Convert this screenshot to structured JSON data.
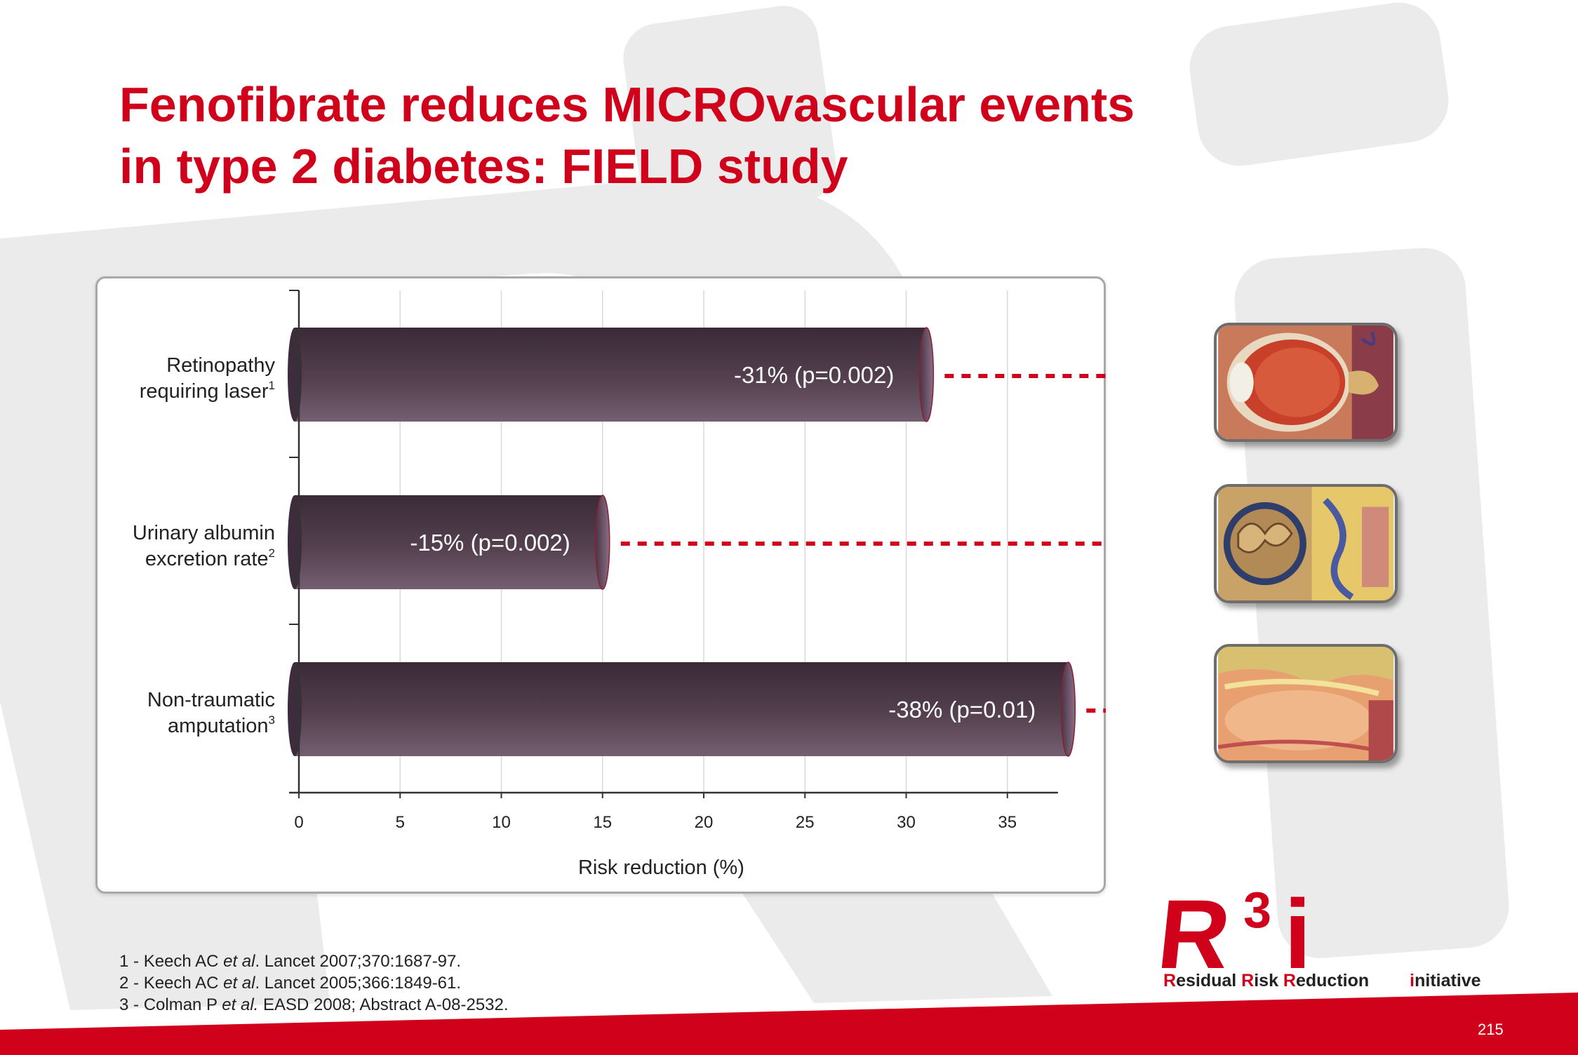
{
  "slide": {
    "title_line1": "Fenofibrate reduces MICROvascular events",
    "title_line2": "in type 2 diabetes: FIELD study",
    "page_number": "215"
  },
  "chart_data": {
    "type": "bar",
    "orientation": "horizontal",
    "categories": [
      {
        "label_line1": "Retinopathy",
        "label_line2": "requiring laser",
        "ref": "1"
      },
      {
        "label_line1": "Urinary albumin",
        "label_line2": "excretion rate",
        "ref": "2"
      },
      {
        "label_line1": "Non-traumatic",
        "label_line2": "amputation",
        "ref": "3"
      }
    ],
    "values": [
      31,
      15,
      38
    ],
    "data_labels": [
      "-31% (p=0.002)",
      "-15% (p=0.002)",
      "-38% (p=0.01)"
    ],
    "xlabel": "Risk reduction (%)",
    "xticks": [
      "0",
      "5",
      "10",
      "15",
      "20",
      "25",
      "30",
      "35"
    ],
    "xlim": [
      0,
      37.5
    ],
    "grid": true,
    "bar_color": "#54404f",
    "arrow_color": "#d0021b"
  },
  "thumbnails": [
    {
      "icon": "eye-anatomy-illustration"
    },
    {
      "icon": "kidney-anatomy-illustration"
    },
    {
      "icon": "blood-vessel-anatomy-illustration"
    }
  ],
  "references": [
    {
      "num": "1 - ",
      "author": "Keech AC ",
      "etal": "et al",
      "rest": ". Lancet 2007;370:1687-97."
    },
    {
      "num": "2 - ",
      "author": "Keech AC ",
      "etal": "et al",
      "rest": ". Lancet 2005;366:1849-61."
    },
    {
      "num": "3 - ",
      "author": "Colman P ",
      "etal": "et al.",
      "rest": " EASD 2008; Abstract A-08-2532."
    }
  ],
  "logo": {
    "mark_text": "R",
    "mark_sup": "3",
    "mark_i": "i",
    "tag_r1": "R",
    "tag_w1": "esidual ",
    "tag_r2": "R",
    "tag_w2": "isk ",
    "tag_r3": "R",
    "tag_w3": "eduction",
    "tag_r4": "i",
    "tag_w4": "nitiative",
    "brand_color": "#d0021b"
  }
}
